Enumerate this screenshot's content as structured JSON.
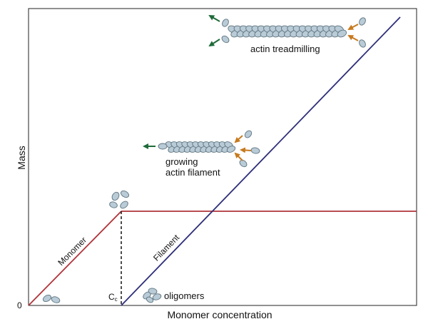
{
  "axes": {
    "y_label": "Mass",
    "x_label": "Monomer concentration",
    "origin_label": "0"
  },
  "critical_concentration": {
    "symbol": "C",
    "subscript": "c"
  },
  "lines": {
    "monomer_label": "Monomer",
    "filament_label": "Filament"
  },
  "annotations": {
    "oligomers": "oligomers",
    "growing_line1": "growing",
    "growing_line2": "actin filament",
    "treadmilling": "actin treadmilling"
  },
  "colors": {
    "monomer_line": "#b0343a",
    "filament_line": "#2e2e7a",
    "arrow_off": "#1f6b3a",
    "arrow_on": "#c77a1e",
    "subunit_fill": "#b8cbd6",
    "subunit_stroke": "#5f7480"
  }
}
